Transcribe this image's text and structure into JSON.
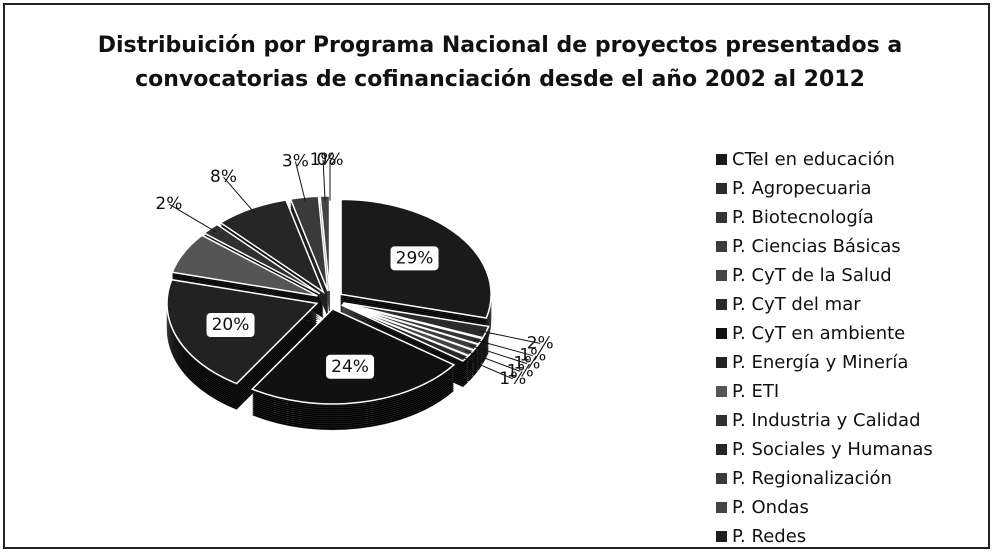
{
  "chart_data": {
    "type": "pie",
    "title": [
      "Distribuición por Programa Nacional de proyectos presentados a",
      "convocatorias de cofinanciación desde el año 2002 al 2012"
    ],
    "categories": [
      "CTeI en educación",
      "P. Agropecuaria",
      "P. Biotecnología",
      "P. Ciencias Básicas",
      "P. CyT de la Salud",
      "P. CyT del mar",
      "P. CyT en ambiente",
      "P. Energía y Minería",
      "P. ETI",
      "P. Industria y Calidad",
      "P. Sociales y Humanas",
      "P. Regionalización",
      "P. Ondas",
      "P. Redes"
    ],
    "values": [
      29,
      2,
      1,
      1,
      1,
      1,
      24,
      20,
      7,
      2,
      8,
      3,
      1,
      0
    ],
    "value_labels": [
      "29%",
      "2%",
      "1%",
      "1%",
      "1%",
      "1%",
      "24%",
      "20%",
      null,
      "2%",
      "8%",
      "3%",
      "1%",
      "0%"
    ],
    "colors": [
      "#1a1a1a",
      "#2b2b2b",
      "#333",
      "#3c3c3c",
      "#444",
      "#2a2a2a",
      "#111",
      "#222",
      "#555",
      "#303030",
      "#262626",
      "#3a3a3a",
      "#444",
      "#1e1e1e"
    ],
    "legend": "right"
  }
}
